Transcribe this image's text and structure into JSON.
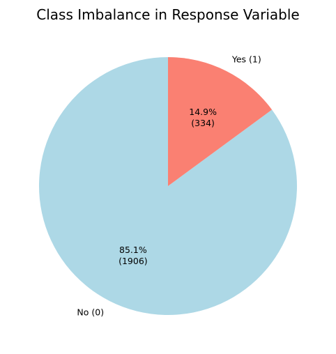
{
  "chart_data": {
    "type": "pie",
    "title": "Class Imbalance in Response Variable",
    "start_angle_deg": 90,
    "direction": "counterclockwise",
    "slices": [
      {
        "label": "No (0)",
        "count": 1906,
        "pct_label": "85.1%",
        "count_label": "(1906)",
        "color": "#add8e6"
      },
      {
        "label": "Yes (1)",
        "count": 334,
        "pct_label": "14.9%",
        "count_label": "(334)",
        "color": "#fa8072"
      }
    ]
  }
}
